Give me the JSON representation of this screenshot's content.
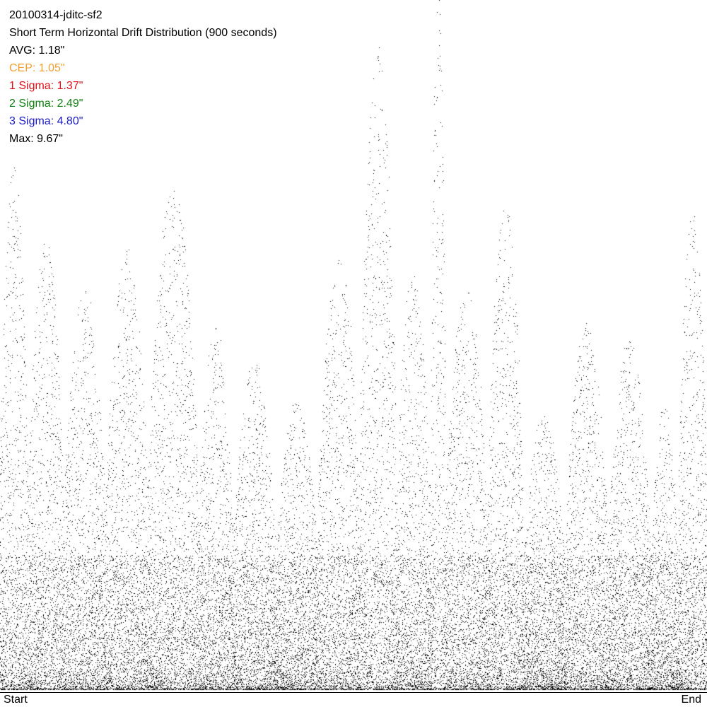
{
  "chart_data": {
    "type": "scatter",
    "title": "20100314-jditc-sf2",
    "subtitle": "Short Term Horizontal Drift Distribution (900 seconds)",
    "x_start_label": "Start",
    "x_end_label": "End",
    "xlabel": "",
    "ylabel": "",
    "ylim": [
      0,
      9.67
    ],
    "grid": false,
    "legend_placement": "top-left",
    "point_color": "#000000",
    "stats": [
      {
        "key": "avg",
        "label": "AVG: 1.18\"",
        "value": 1.18,
        "color": "#000000"
      },
      {
        "key": "cep",
        "label": "CEP: 1.05\"",
        "value": 1.05,
        "color": "#f0a030"
      },
      {
        "key": "sigma1",
        "label": "1 Sigma: 1.37\"",
        "value": 1.37,
        "color": "#e0101a"
      },
      {
        "key": "sigma2",
        "label": "2 Sigma: 2.49\"",
        "value": 2.49,
        "color": "#108010"
      },
      {
        "key": "sigma3",
        "label": "3 Sigma: 4.80\"",
        "value": 4.8,
        "color": "#1818c8"
      },
      {
        "key": "max",
        "label": "Max: 9.67\"",
        "value": 9.67,
        "color": "#000000"
      }
    ],
    "segments": [
      {
        "start": 0.0,
        "end": 0.04,
        "peak": 7.0
      },
      {
        "start": 0.04,
        "end": 0.09,
        "peak": 6.1
      },
      {
        "start": 0.09,
        "end": 0.15,
        "peak": 5.4
      },
      {
        "start": 0.15,
        "end": 0.21,
        "peak": 5.9
      },
      {
        "start": 0.21,
        "end": 0.28,
        "peak": 6.8
      },
      {
        "start": 0.28,
        "end": 0.33,
        "peak": 4.9
      },
      {
        "start": 0.33,
        "end": 0.39,
        "peak": 4.4
      },
      {
        "start": 0.39,
        "end": 0.45,
        "peak": 3.9
      },
      {
        "start": 0.45,
        "end": 0.51,
        "peak": 5.8
      },
      {
        "start": 0.51,
        "end": 0.56,
        "peak": 8.6
      },
      {
        "start": 0.56,
        "end": 0.61,
        "peak": 5.6
      },
      {
        "start": 0.61,
        "end": 0.63,
        "peak": 9.67
      },
      {
        "start": 0.63,
        "end": 0.69,
        "peak": 5.4
      },
      {
        "start": 0.69,
        "end": 0.74,
        "peak": 6.5
      },
      {
        "start": 0.74,
        "end": 0.8,
        "peak": 3.7
      },
      {
        "start": 0.8,
        "end": 0.86,
        "peak": 4.9
      },
      {
        "start": 0.86,
        "end": 0.92,
        "peak": 4.7
      },
      {
        "start": 0.92,
        "end": 0.96,
        "peak": 3.8
      },
      {
        "start": 0.96,
        "end": 1.0,
        "peak": 6.5
      }
    ],
    "sample_count": 24000
  }
}
